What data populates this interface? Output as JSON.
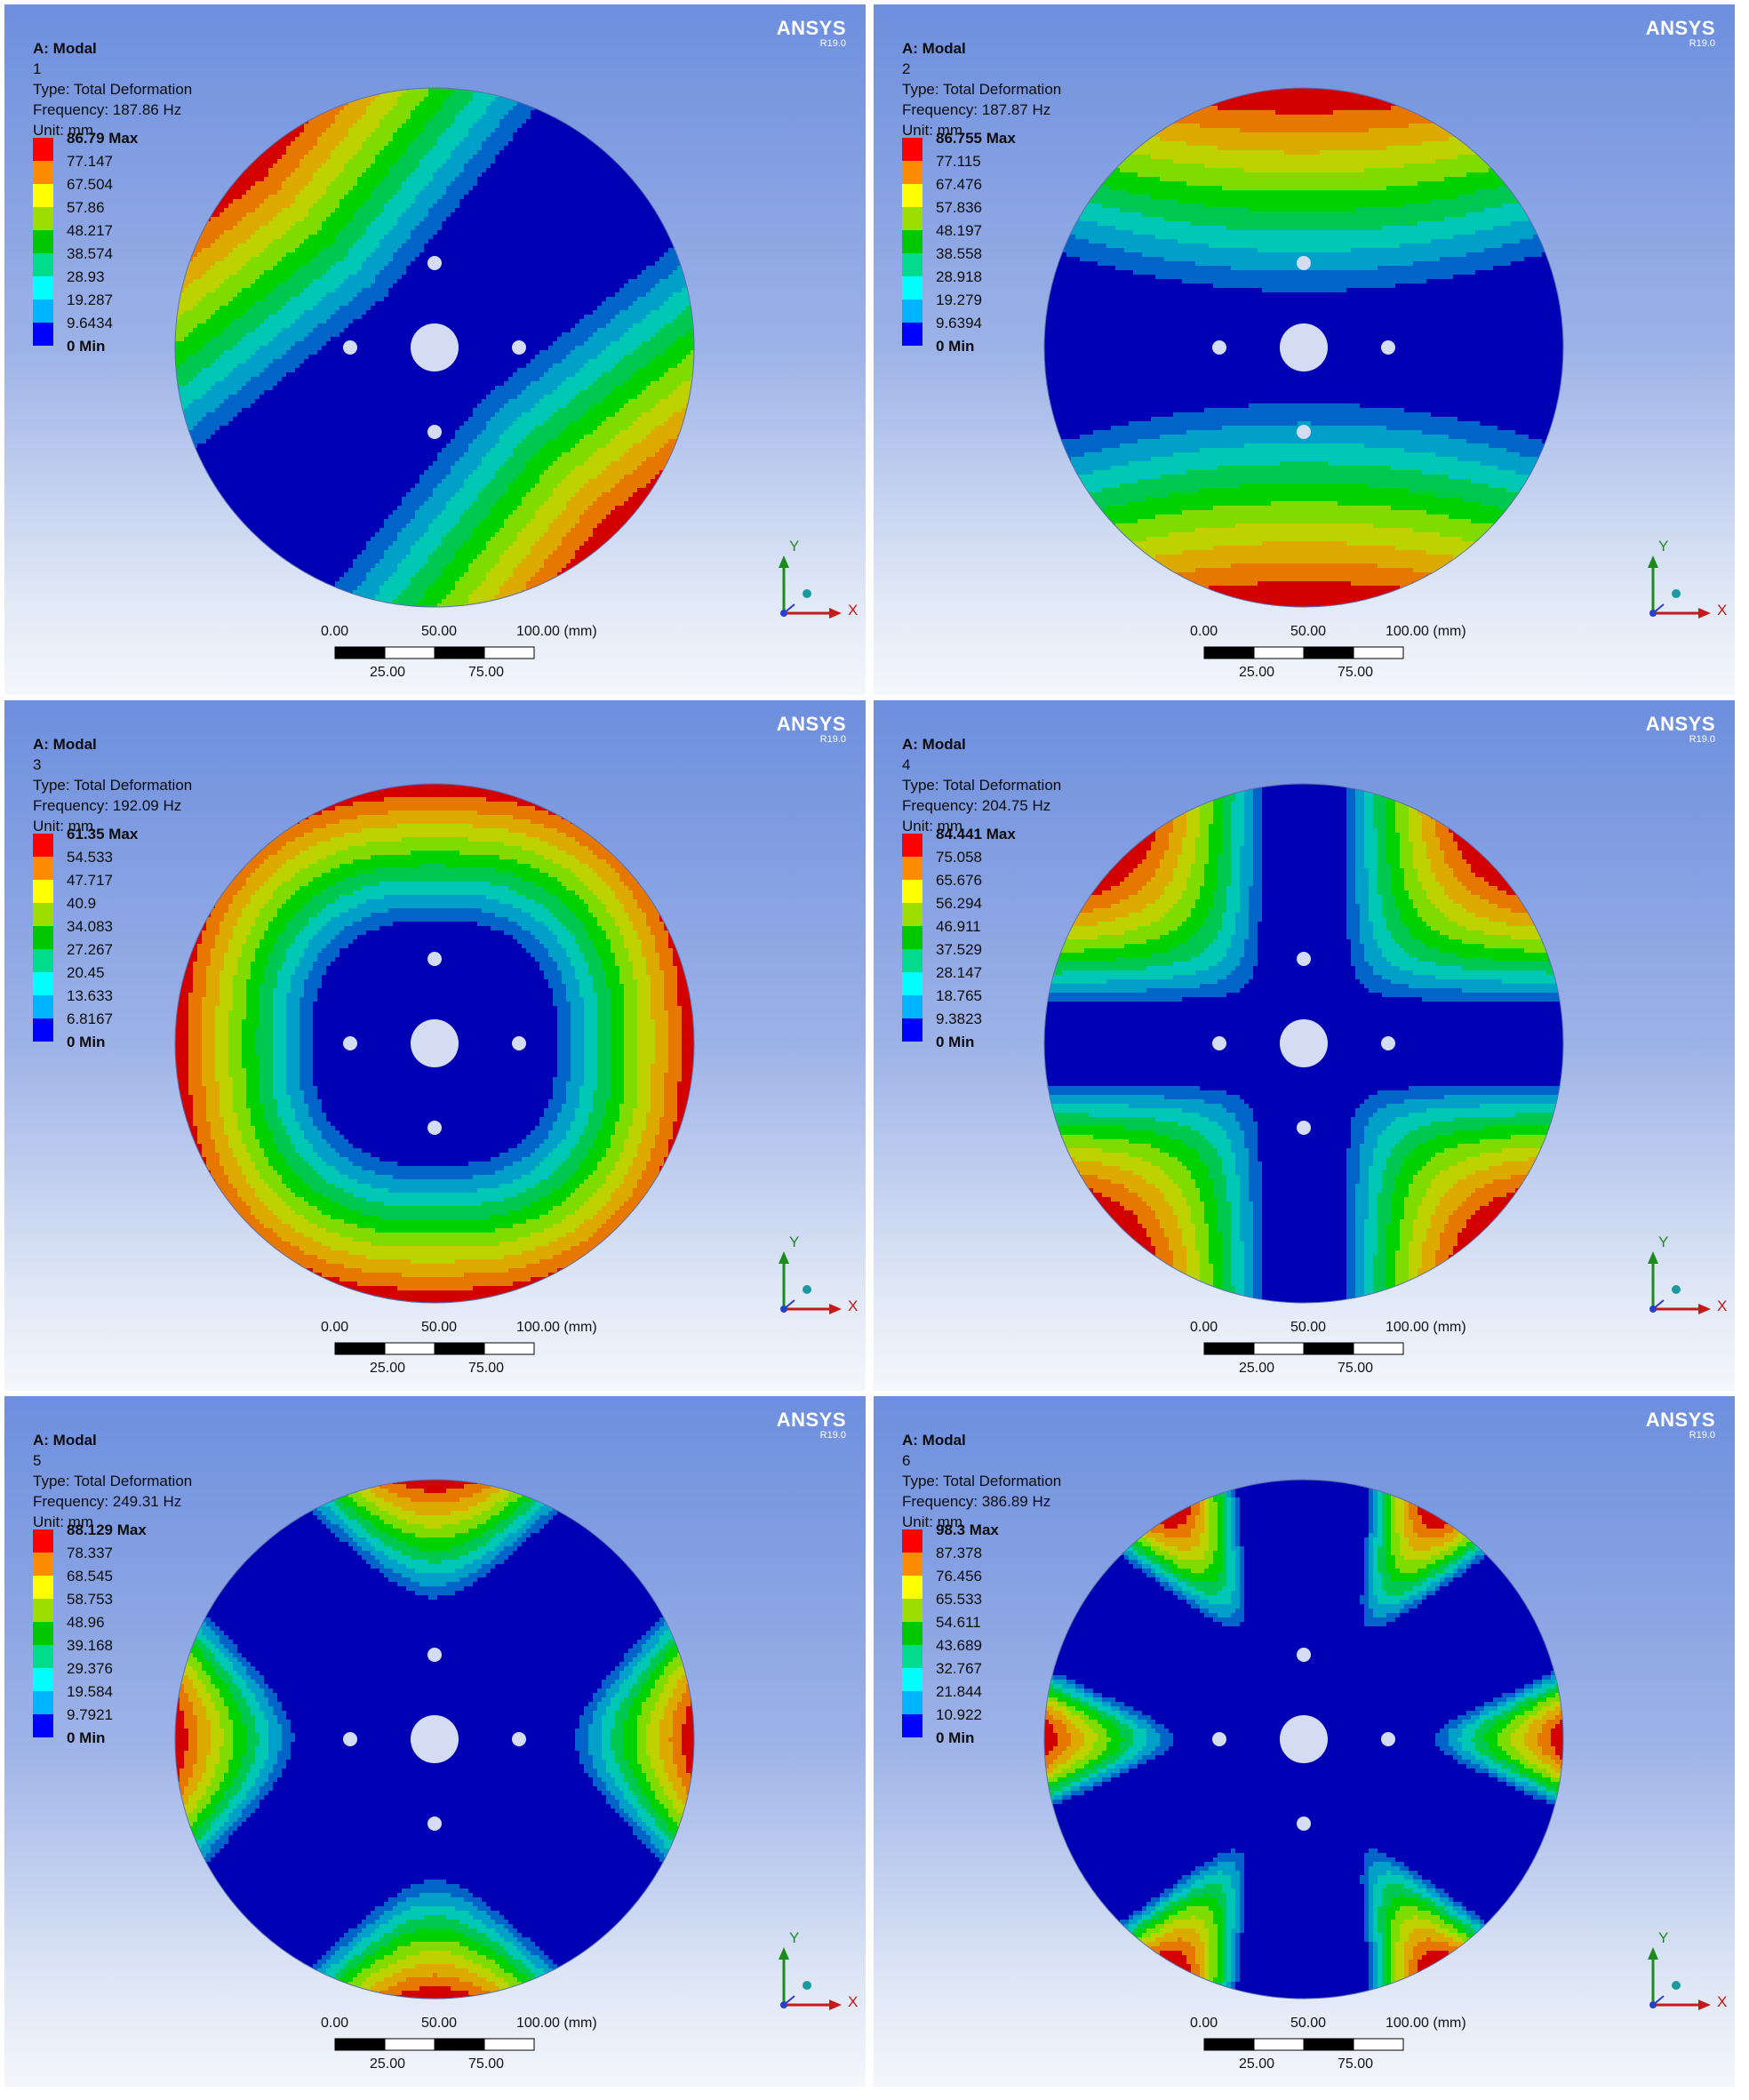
{
  "brand": {
    "name": "ANSYS",
    "version": "R19.0"
  },
  "analysis_title": "A: Modal",
  "type_label": "Type: Total Deformation",
  "unit_label": "Unit: mm",
  "scale_bar": {
    "labels_top": [
      "0.00",
      "50.00",
      "100.00 (mm)"
    ],
    "labels_bottom": [
      "25.00",
      "75.00"
    ]
  },
  "axes": {
    "x": "X",
    "y": "Y"
  },
  "colors": {
    "legend_bands": [
      "#ff0000",
      "#ff8c00",
      "#ffff00",
      "#9dde00",
      "#00c800",
      "#00dc8c",
      "#00ffff",
      "#00b4ff",
      "#0000ff"
    ],
    "plot_bands": [
      "#0000b4",
      "#0064c8",
      "#00a0c8",
      "#00c8b4",
      "#00c850",
      "#00d200",
      "#80dc00",
      "#bed200",
      "#dcaa00",
      "#e67800",
      "#d20000"
    ]
  },
  "modes": [
    {
      "mode": "1",
      "frequency": "Frequency: 187.86 Hz",
      "legend": [
        "86.79 Max",
        "77.147",
        "67.504",
        "57.86",
        "48.217",
        "38.574",
        "28.93",
        "19.287",
        "9.6434",
        "0 Min"
      ]
    },
    {
      "mode": "2",
      "frequency": "Frequency: 187.87 Hz",
      "legend": [
        "86.755 Max",
        "77.115",
        "67.476",
        "57.836",
        "48.197",
        "38.558",
        "28.918",
        "19.279",
        "9.6394",
        "0 Min"
      ]
    },
    {
      "mode": "3",
      "frequency": "Frequency: 192.09 Hz",
      "legend": [
        "61.35 Max",
        "54.533",
        "47.717",
        "40.9",
        "34.083",
        "27.267",
        "20.45",
        "13.633",
        "6.8167",
        "0 Min"
      ]
    },
    {
      "mode": "4",
      "frequency": "Frequency: 204.75 Hz",
      "legend": [
        "84.441 Max",
        "75.058",
        "65.676",
        "56.294",
        "46.911",
        "37.529",
        "28.147",
        "18.765",
        "9.3823",
        "0 Min"
      ]
    },
    {
      "mode": "5",
      "frequency": "Frequency: 249.31 Hz",
      "legend": [
        "88.129 Max",
        "78.337",
        "68.545",
        "58.753",
        "48.96",
        "39.168",
        "29.376",
        "19.584",
        "9.7921",
        "0 Min"
      ]
    },
    {
      "mode": "6",
      "frequency": "Frequency: 386.89 Hz",
      "legend": [
        "98.3 Max",
        "87.378",
        "76.456",
        "65.533",
        "54.611",
        "43.689",
        "32.767",
        "21.844",
        "10.922",
        "0 Min"
      ]
    }
  ]
}
